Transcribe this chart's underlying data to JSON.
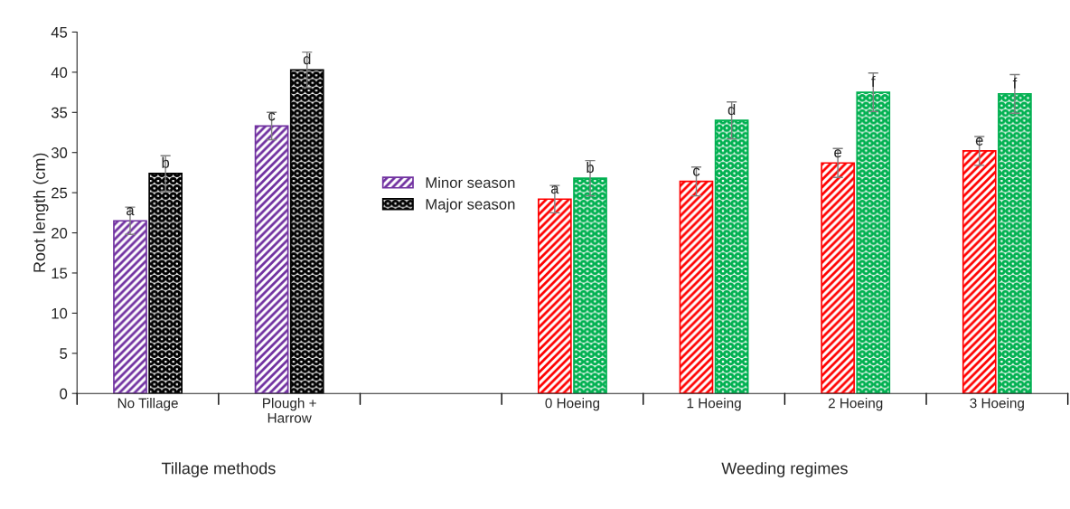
{
  "chart_data": {
    "type": "bar",
    "ylabel": "Root length (cm)",
    "categories": [
      "No Tillage",
      "Plough +\nHarrow",
      null,
      "0 Hoeing",
      "1 Hoeing",
      "2 Hoeing",
      "3 Hoeing"
    ],
    "series": [
      {
        "name": "Minor season",
        "colors": [
          "#7030a0",
          "#7030a0",
          null,
          "#ff0000",
          "#ff0000",
          "#ff0000",
          "#ff0000"
        ],
        "values": [
          21.5,
          33.3,
          null,
          24.2,
          26.4,
          28.7,
          30.2
        ],
        "errors": [
          1.7,
          1.7,
          null,
          1.7,
          1.8,
          1.8,
          1.8
        ],
        "value_labels": [
          "a",
          "c",
          null,
          "a",
          "c",
          "e",
          "e"
        ]
      },
      {
        "name": "Major season",
        "colors": [
          "#000000",
          "#000000",
          null,
          "#00b050",
          "#00b050",
          "#00b050",
          "#00b050"
        ],
        "values": [
          27.4,
          40.3,
          null,
          26.8,
          34.0,
          37.5,
          37.3
        ],
        "errors": [
          2.2,
          2.2,
          null,
          2.2,
          2.3,
          2.4,
          2.4
        ],
        "value_labels": [
          "b",
          "d",
          null,
          "b",
          "d",
          "f",
          "f"
        ]
      }
    ],
    "annotations": [
      "Tillage methods",
      "Weeding regimes"
    ],
    "ylim": [
      0,
      45
    ],
    "yticks": [
      0,
      5,
      10,
      15,
      20,
      25,
      30,
      35,
      40,
      45
    ],
    "legend": "center left",
    "grid": false
  }
}
